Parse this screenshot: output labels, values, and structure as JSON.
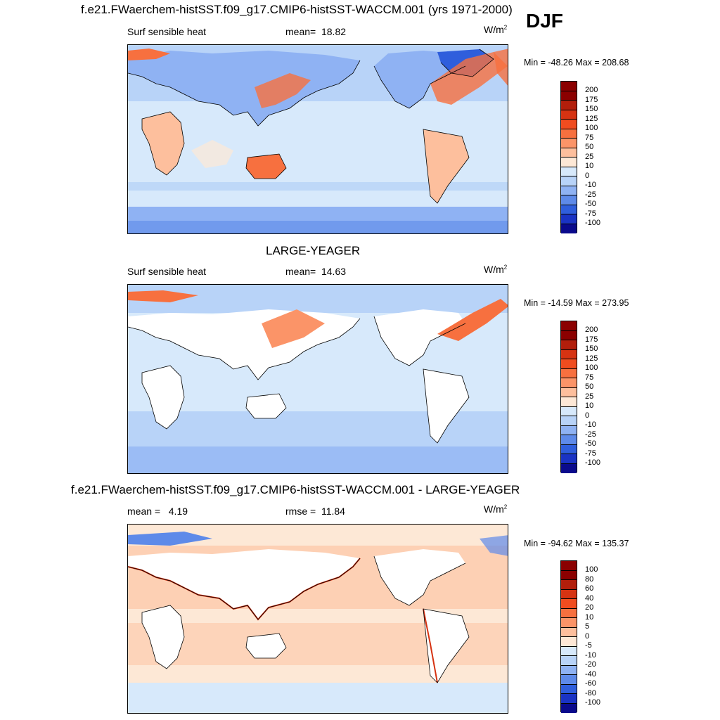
{
  "header": {
    "title": "f.e21.FWaerchem-histSST.f09_g17.CMIP6-histSST-WACCM.001 (yrs 1971-2000)",
    "season": "DJF"
  },
  "panels": [
    {
      "id": "model",
      "variable": "Surf sensible heat",
      "stat_label": "mean=",
      "stat_value": "18.82",
      "units": "W/m",
      "units_sup": "2",
      "minmax": "Min = -48.26 Max = 208.68",
      "levels": [
        "200",
        "175",
        "150",
        "125",
        "100",
        "75",
        "50",
        "25",
        "10",
        "0",
        "-10",
        "-25",
        "-50",
        "-75",
        "-100"
      ]
    },
    {
      "id": "obs",
      "title": "LARGE-YEAGER",
      "variable": "Surf sensible heat",
      "stat_label": "mean=",
      "stat_value": "14.63",
      "units": "W/m",
      "units_sup": "2",
      "minmax": "Min = -14.59 Max = 273.95",
      "levels": [
        "200",
        "175",
        "150",
        "125",
        "100",
        "75",
        "50",
        "25",
        "10",
        "0",
        "-10",
        "-25",
        "-50",
        "-75",
        "-100"
      ]
    },
    {
      "id": "diff",
      "title": "f.e21.FWaerchem-histSST.f09_g17.CMIP6-histSST-WACCM.001 - LARGE-YEAGER",
      "stat_label": "mean =",
      "stat_value": "4.19",
      "stat2_label": "rmse =",
      "stat2_value": "11.84",
      "units": "W/m",
      "units_sup": "2",
      "minmax": "Min = -94.62 Max = 135.37",
      "levels": [
        "100",
        "80",
        "60",
        "40",
        "20",
        "10",
        "5",
        "0",
        "-5",
        "-10",
        "-20",
        "-40",
        "-60",
        "-80",
        "-100"
      ]
    }
  ],
  "colors": {
    "colorbar": [
      "#8b0000",
      "#b21e0b",
      "#d63312",
      "#f04c1f",
      "#f7703f",
      "#fb9468",
      "#fdbf9d",
      "#fde8d6",
      "#d7e9fb",
      "#b8d3f8",
      "#8fb2f3",
      "#5e8ae9",
      "#2f5edc",
      "#1a33c4",
      "#0a0a8c"
    ],
    "land": "#ffffff",
    "coast": "#000000"
  }
}
